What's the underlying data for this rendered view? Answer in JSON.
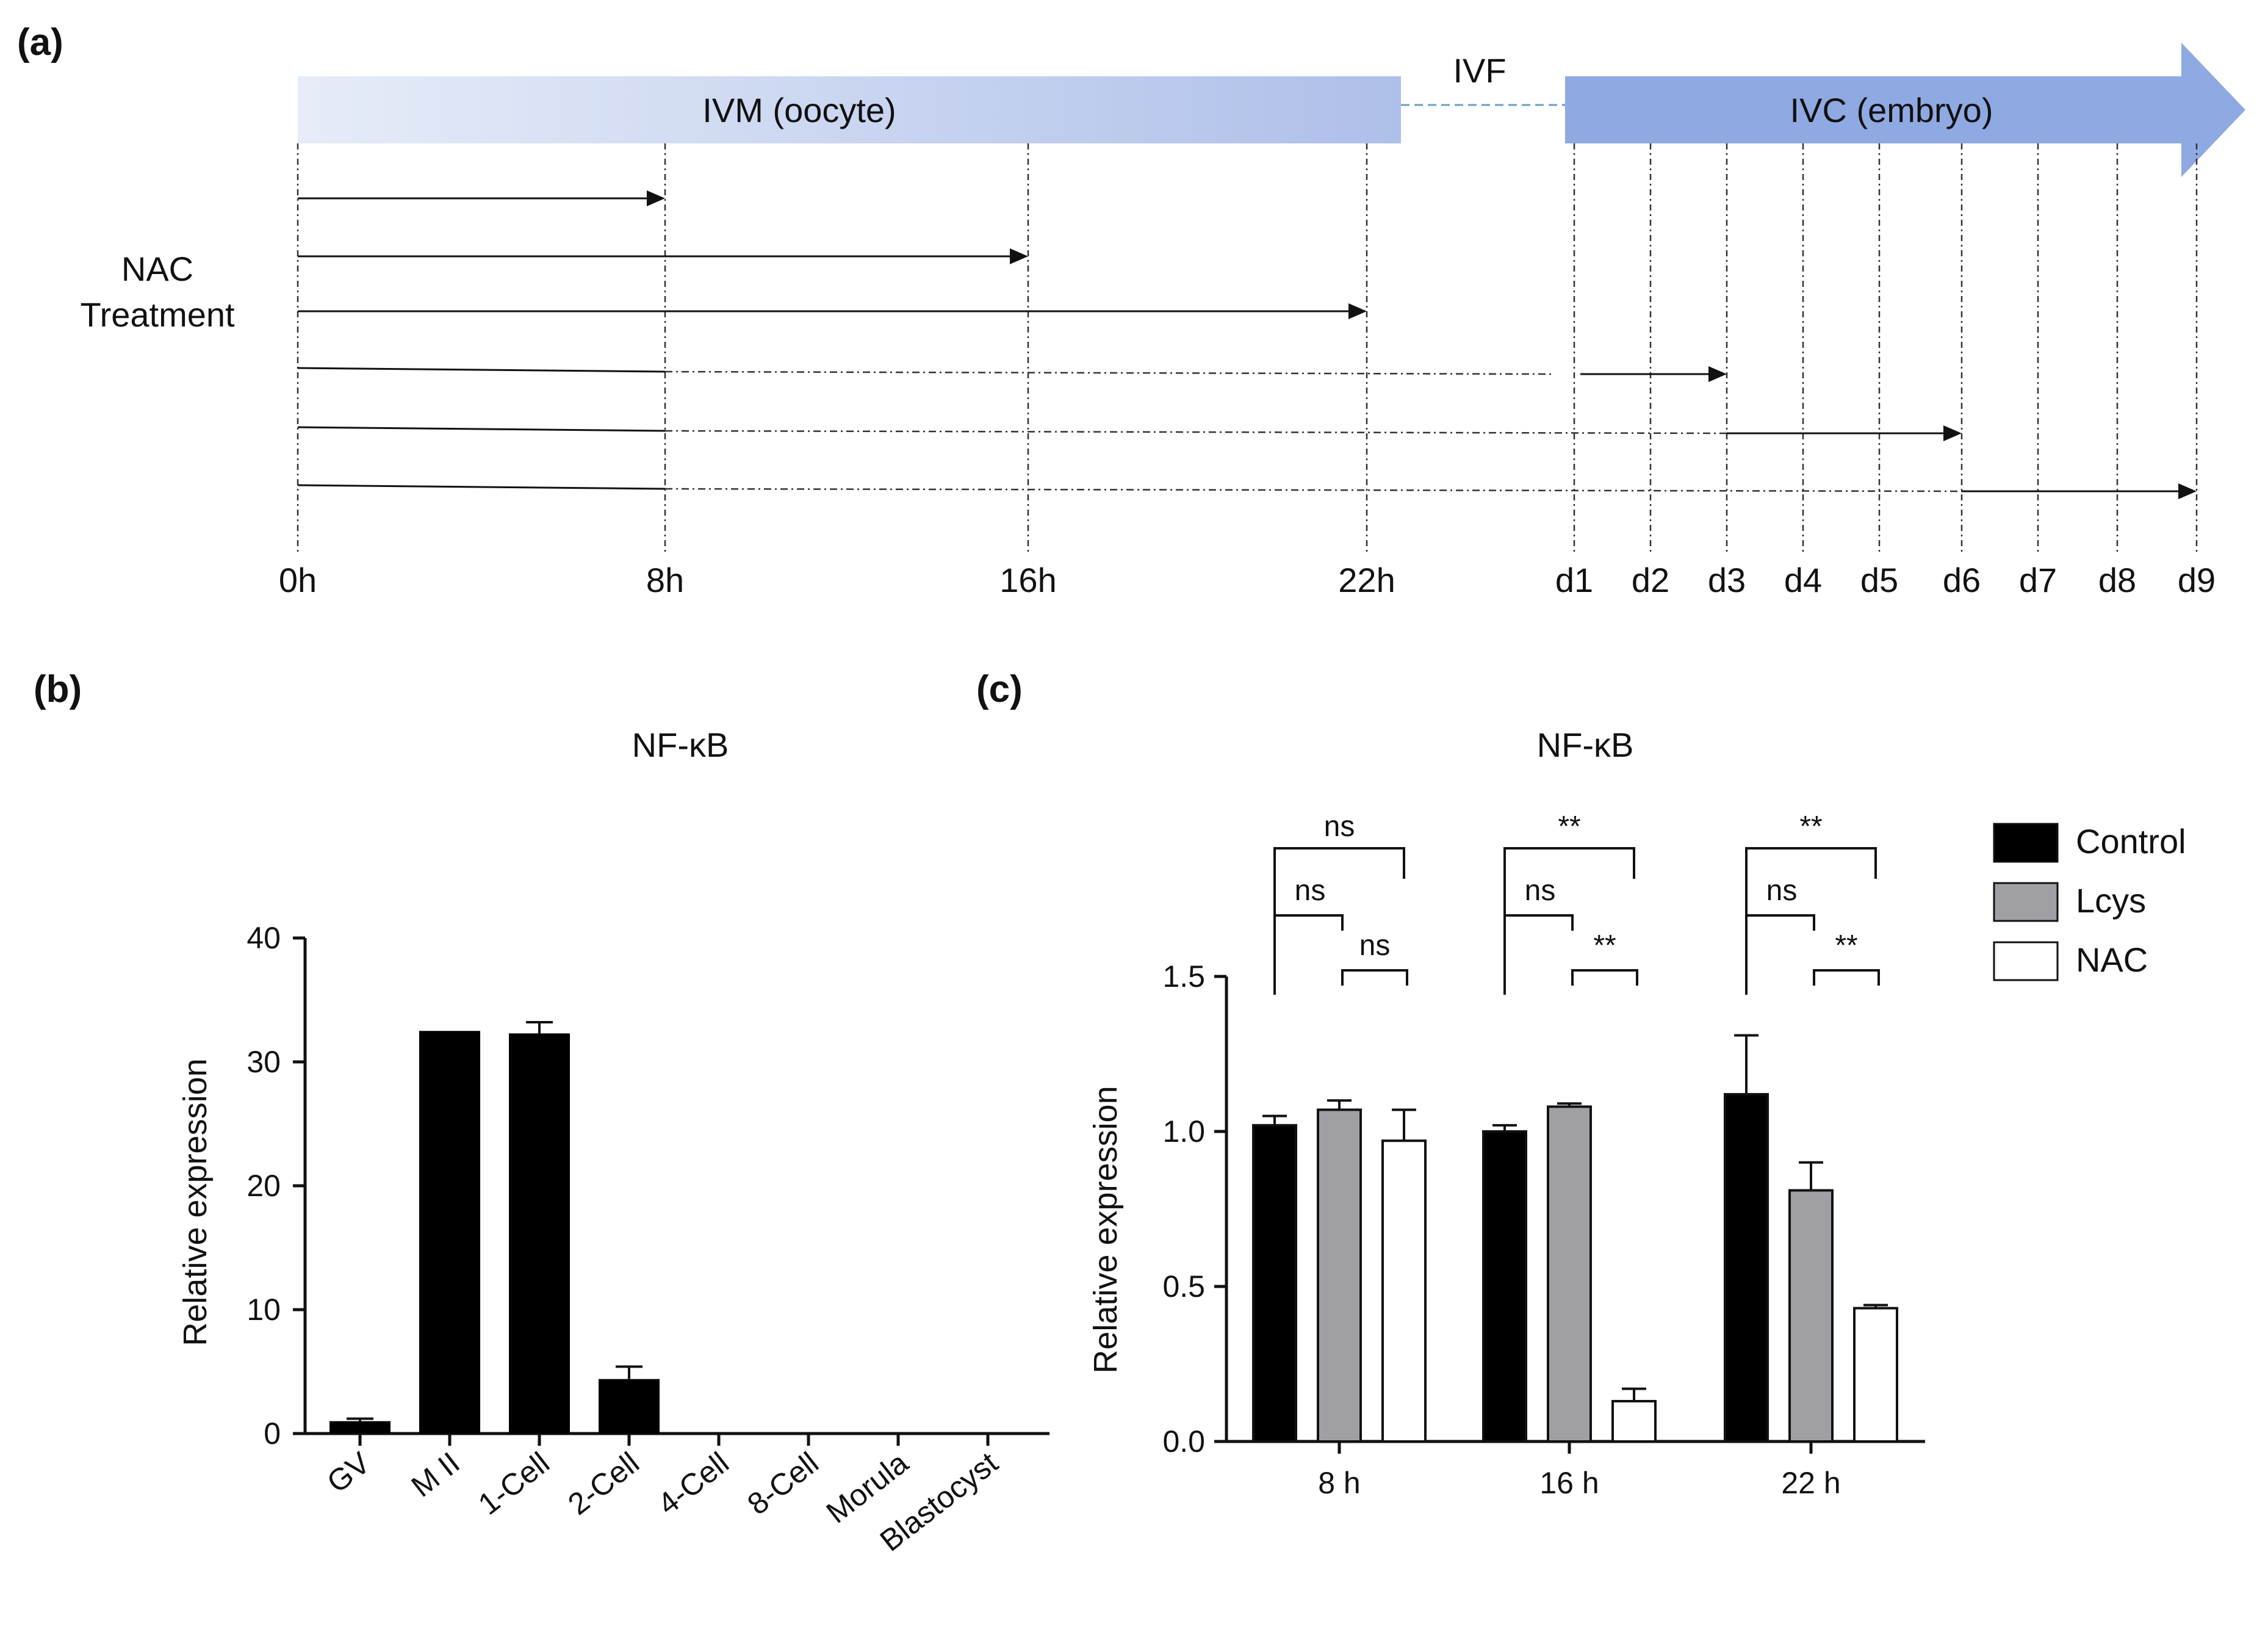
{
  "panel_a": {
    "label": "(a)",
    "ivm_label": "IVM (oocyte)",
    "ivf_label": "IVF",
    "ivc_label": "IVC (embryo)",
    "nac_label_line1": "NAC",
    "nac_label_line2": "Treatment",
    "time_labels": [
      "0h",
      "8h",
      "16h",
      "22h",
      "d1",
      "d2",
      "d3",
      "d4",
      "d5",
      "d6",
      "d7",
      "d8",
      "d9"
    ],
    "treatments": [
      {
        "start": "0h",
        "end": "8h"
      },
      {
        "start": "0h",
        "end": "16h"
      },
      {
        "start": "0h",
        "end": "22h"
      },
      {
        "start": "0h",
        "end": "d3"
      },
      {
        "start": "0h",
        "end": "d6"
      },
      {
        "start": "0h",
        "end": "d9"
      }
    ],
    "colors": {
      "bar_light": "#e6ecf8",
      "bar_dark": "#aebfe9",
      "ivc": "#8fa9e2",
      "ivf_line": "#6a9fc4"
    }
  },
  "chart_data": [
    {
      "panel": "(b)",
      "type": "bar",
      "title": "NF-κB",
      "xlabel": "",
      "ylabel": "Relative expression",
      "ylim": [
        0,
        40
      ],
      "yticks": [
        "0",
        "10",
        "20",
        "30",
        "40"
      ],
      "categories": [
        "GV",
        "M II",
        "1-Cell",
        "2-Cell",
        "4-Cell",
        "8-Cell",
        "Morula",
        "Blastocyst"
      ],
      "values": [
        1,
        32.5,
        32.3,
        4.4,
        0,
        0,
        0,
        0
      ],
      "errors": [
        0.2,
        0,
        0.9,
        1.0,
        0,
        0,
        0,
        0
      ],
      "bar_color": "#000000"
    },
    {
      "panel": "(c)",
      "type": "bar",
      "title": "NF-κB",
      "xlabel": "",
      "ylabel": "Relative expression",
      "ylim": [
        0,
        1.5
      ],
      "yticks": [
        "0.0",
        "0.5",
        "1.0",
        "1.5"
      ],
      "categories": [
        "8 h",
        "16 h",
        "22 h"
      ],
      "series": [
        {
          "name": "Control",
          "color": "#000000",
          "values": [
            1.02,
            1.0,
            1.12
          ],
          "errors": [
            0.03,
            0.02,
            0.19
          ]
        },
        {
          "name": "Lcys",
          "color": "#a0a0a4",
          "values": [
            1.07,
            1.08,
            0.81
          ],
          "errors": [
            0.03,
            0.01,
            0.09
          ]
        },
        {
          "name": "NAC",
          "color": "#ffffff",
          "values": [
            0.97,
            0.13,
            0.43
          ],
          "errors": [
            0.1,
            0.04,
            0.01
          ]
        }
      ],
      "significance": [
        {
          "group": "8 h",
          "ctrl_vs_nac": "ns",
          "ctrl_vs_lcys": "ns",
          "lcys_vs_nac": "ns"
        },
        {
          "group": "16 h",
          "ctrl_vs_nac": "**",
          "ctrl_vs_lcys": "ns",
          "lcys_vs_nac": "**"
        },
        {
          "group": "22 h",
          "ctrl_vs_nac": "**",
          "ctrl_vs_lcys": "ns",
          "lcys_vs_nac": "**"
        }
      ],
      "legend_position": "top-right"
    }
  ]
}
